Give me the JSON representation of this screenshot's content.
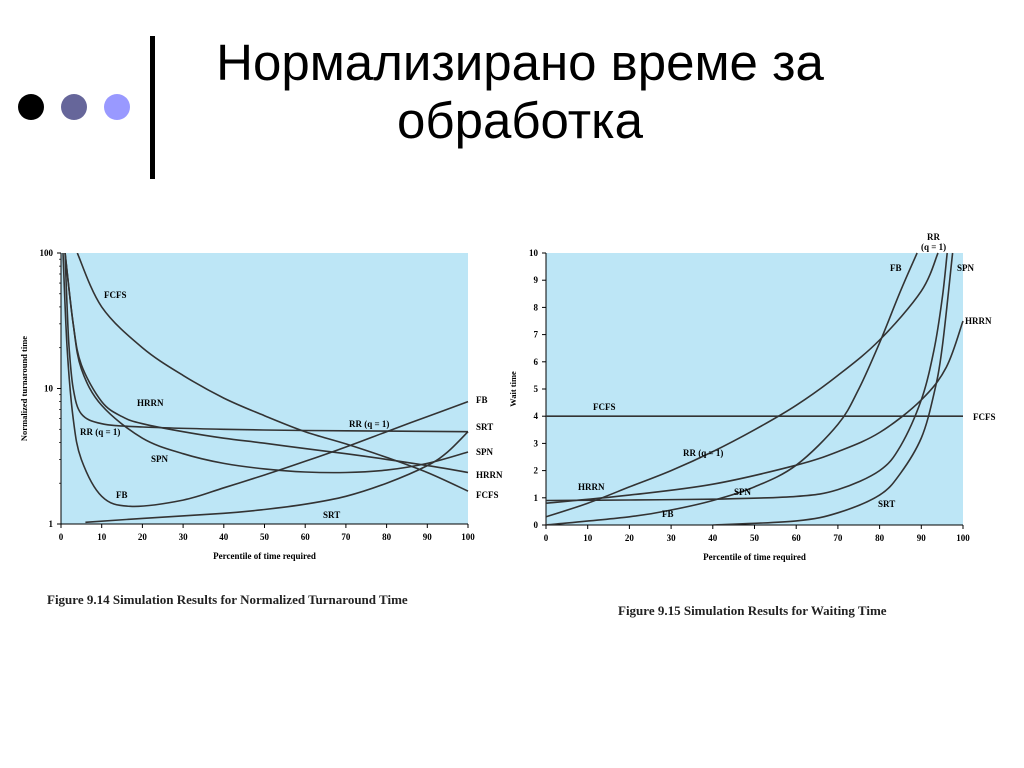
{
  "slide": {
    "title_line1": "Нормализирано време за",
    "title_line2": "обработка",
    "bullet_colors": [
      "#000000",
      "#66669a",
      "#9999ff"
    ]
  },
  "chart_data": [
    {
      "type": "line",
      "caption": "Figure 9.14  Simulation Results for Normalized Turnaround Time",
      "xlabel": "Percentile of time required",
      "ylabel": "Normalized turnaround time",
      "x_scale": "linear",
      "y_scale": "log",
      "xlim": [
        0,
        100
      ],
      "ylim": [
        1,
        100
      ],
      "x_ticks": [
        0,
        10,
        20,
        30,
        40,
        50,
        60,
        70,
        80,
        90,
        100
      ],
      "y_ticks": [
        1,
        10,
        100
      ],
      "plot_background": "#bde6f6",
      "series": [
        {
          "name": "FCFS",
          "x": [
            4,
            10,
            20,
            30,
            40,
            50,
            60,
            70,
            80,
            90,
            100
          ],
          "y": [
            100,
            40,
            20,
            12.5,
            8.5,
            6.3,
            4.8,
            3.9,
            3.1,
            2.4,
            1.75
          ]
        },
        {
          "name": "HRRN",
          "x": [
            1,
            3,
            5,
            10,
            15,
            20,
            30,
            40,
            50,
            60,
            70,
            80,
            90,
            100
          ],
          "y": [
            100,
            30,
            15,
            8,
            6.2,
            5.5,
            4.8,
            4.3,
            3.95,
            3.6,
            3.3,
            3.0,
            2.7,
            2.4
          ]
        },
        {
          "name": "SPN",
          "x": [
            1,
            3,
            5,
            10,
            20,
            30,
            40,
            50,
            60,
            70,
            80,
            90,
            100
          ],
          "y": [
            100,
            30,
            14,
            7.5,
            4.3,
            3.3,
            2.8,
            2.55,
            2.42,
            2.4,
            2.5,
            2.8,
            3.4
          ]
        },
        {
          "name": "RR (q = 1)",
          "x": [
            1,
            1.5,
            2,
            3,
            5,
            10,
            20,
            40,
            60,
            80,
            100
          ],
          "y": [
            100,
            40,
            20,
            10,
            6.5,
            5.5,
            5.2,
            5.0,
            4.9,
            4.85,
            4.8
          ]
        },
        {
          "name": "FB",
          "x": [
            0.5,
            1.5,
            3,
            5,
            10,
            17,
            30,
            40,
            50,
            60,
            70,
            80,
            90,
            100
          ],
          "y": [
            100,
            20,
            6,
            3,
            1.6,
            1.35,
            1.5,
            1.85,
            2.3,
            2.9,
            3.7,
            4.8,
            6.2,
            8
          ]
        },
        {
          "name": "SRT",
          "x": [
            6,
            20,
            40,
            50,
            60,
            70,
            80,
            90,
            95,
            100
          ],
          "y": [
            1.03,
            1.1,
            1.2,
            1.28,
            1.4,
            1.6,
            2.0,
            2.7,
            3.4,
            4.8
          ]
        }
      ],
      "series_labels": [
        "FCFS",
        "HRRN",
        "SPN",
        "RR (q = 1)",
        "FB",
        "SRT"
      ],
      "right_labels": [
        "FB",
        "SRT",
        "SPN",
        "HRRN",
        "FCFS"
      ],
      "inline_labels": [
        "FCFS",
        "HRRN",
        "RR (q = 1)",
        "SPN",
        "FB",
        "SRT",
        "RR (q = 1)"
      ]
    },
    {
      "type": "line",
      "caption": "Figure 9.15  Simulation Results for Waiting Time",
      "xlabel": "Percentile of time required",
      "ylabel": "Wait time",
      "x_scale": "linear",
      "y_scale": "linear",
      "xlim": [
        0,
        100
      ],
      "ylim": [
        0,
        10
      ],
      "x_ticks": [
        0,
        10,
        20,
        30,
        40,
        50,
        60,
        70,
        80,
        90,
        100
      ],
      "y_ticks": [
        0,
        1,
        2,
        3,
        4,
        5,
        6,
        7,
        8,
        9,
        10
      ],
      "plot_background": "#bde6f6",
      "series": [
        {
          "name": "FCFS",
          "x": [
            0,
            100
          ],
          "y": [
            4,
            4
          ]
        },
        {
          "name": "RR (q = 1)",
          "x": [
            0,
            10,
            20,
            30,
            40,
            50,
            60,
            70,
            80,
            90,
            94
          ],
          "y": [
            0.3,
            0.8,
            1.4,
            2.0,
            2.7,
            3.5,
            4.4,
            5.5,
            6.8,
            8.6,
            10
          ]
        },
        {
          "name": "FB",
          "x": [
            0,
            20,
            30,
            40,
            50,
            60,
            70,
            75,
            80,
            85,
            89
          ],
          "y": [
            0,
            0.3,
            0.55,
            0.9,
            1.4,
            2.2,
            3.7,
            5.0,
            6.7,
            8.6,
            10
          ]
        },
        {
          "name": "SPN",
          "x": [
            0,
            20,
            40,
            60,
            70,
            80,
            85,
            90,
            93,
            95,
            96.2
          ],
          "y": [
            0.9,
            0.92,
            0.95,
            1.05,
            1.3,
            2.0,
            2.9,
            4.6,
            6.4,
            8.3,
            10
          ]
        },
        {
          "name": "HRRN",
          "x": [
            0,
            20,
            40,
            60,
            70,
            80,
            90,
            96,
            100
          ],
          "y": [
            0.8,
            1.1,
            1.5,
            2.2,
            2.7,
            3.4,
            4.6,
            5.8,
            7.5
          ]
        },
        {
          "name": "SRT",
          "x": [
            40,
            60,
            70,
            80,
            85,
            90,
            93,
            95,
            97.5
          ],
          "y": [
            0,
            0.15,
            0.45,
            1.1,
            1.9,
            3.2,
            4.8,
            6.5,
            10
          ]
        }
      ],
      "series_labels": [
        "FCFS",
        "RR (q = 1)",
        "FB",
        "SPN",
        "HRRN",
        "SRT"
      ],
      "top_labels": [
        "RR",
        "(q = 1)",
        "FB",
        "SPN",
        "HRRN",
        "FCFS"
      ],
      "inline_labels": [
        "FCFS",
        "RR (q = 1)",
        "HRRN",
        "SPN",
        "FB",
        "SRT"
      ]
    }
  ]
}
